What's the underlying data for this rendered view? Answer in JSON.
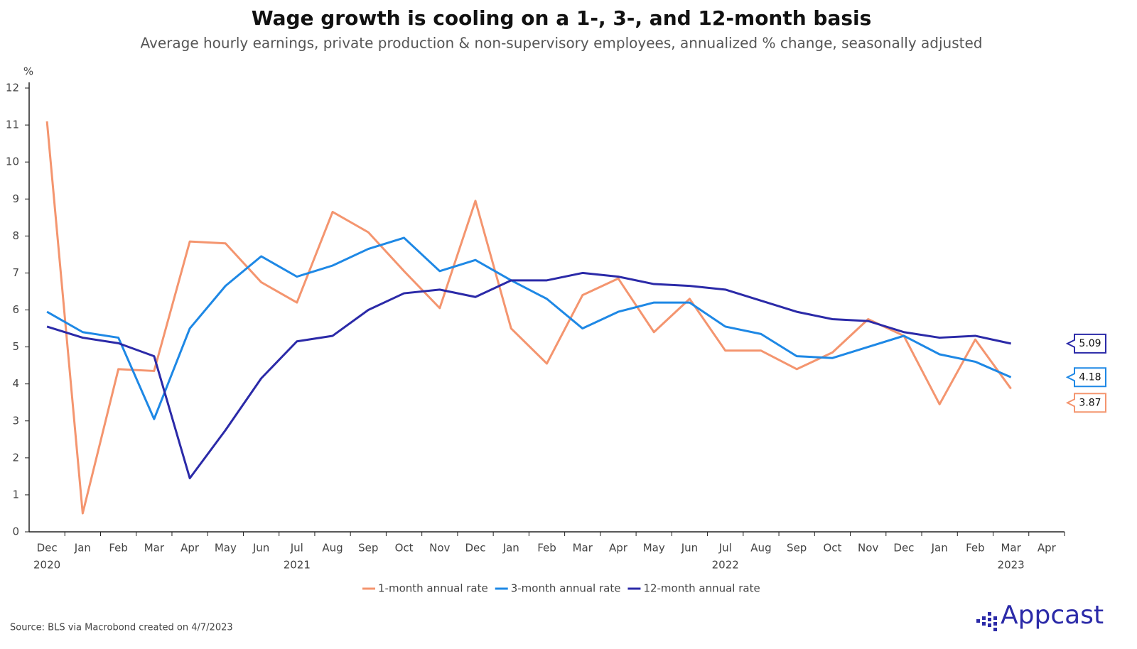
{
  "chart_data": {
    "type": "line",
    "title": "Wage growth is cooling on a 1-, 3-, and 12-month basis",
    "subtitle": "Average hourly earnings, private production & non-supervisory employees, annualized % change, seasonally adjusted",
    "y_label": "%",
    "categories": [
      "Dec",
      "Jan",
      "Feb",
      "Mar",
      "Apr",
      "May",
      "Jun",
      "Jul",
      "Aug",
      "Sep",
      "Oct",
      "Nov",
      "Dec",
      "Jan",
      "Feb",
      "Mar",
      "Apr",
      "May",
      "Jun",
      "Jul",
      "Aug",
      "Sep",
      "Oct",
      "Nov",
      "Dec",
      "Jan",
      "Feb",
      "Mar",
      "Apr"
    ],
    "years": [
      "2020",
      null,
      null,
      null,
      null,
      null,
      null,
      "2021",
      null,
      null,
      null,
      null,
      null,
      null,
      null,
      null,
      null,
      null,
      null,
      "2022",
      null,
      null,
      null,
      null,
      null,
      null,
      null,
      "2023",
      null
    ],
    "series": [
      {
        "name": "1-month annual rate",
        "color": "#f4956f",
        "values": [
          11.1,
          0.5,
          4.4,
          4.35,
          7.85,
          7.8,
          6.75,
          6.2,
          8.65,
          8.1,
          7.05,
          6.05,
          8.95,
          5.5,
          4.55,
          6.4,
          6.85,
          5.4,
          6.3,
          4.9,
          4.9,
          4.4,
          4.85,
          5.75,
          5.3,
          3.45,
          5.2,
          3.87,
          null
        ]
      },
      {
        "name": "3-month annual rate",
        "color": "#1e88e5",
        "values": [
          5.95,
          5.4,
          5.25,
          3.05,
          5.5,
          6.65,
          7.45,
          6.9,
          7.2,
          7.65,
          7.95,
          7.05,
          7.35,
          6.8,
          6.3,
          5.5,
          5.95,
          6.2,
          6.2,
          5.55,
          5.35,
          4.75,
          4.7,
          5.0,
          5.3,
          4.8,
          4.6,
          4.18,
          null
        ]
      },
      {
        "name": "12-month annual rate",
        "color": "#2b2aa8",
        "values": [
          5.55,
          5.25,
          5.1,
          4.75,
          1.45,
          2.75,
          4.15,
          5.15,
          5.3,
          6.0,
          6.45,
          6.55,
          6.35,
          6.8,
          6.8,
          7.0,
          6.9,
          6.7,
          6.65,
          6.55,
          6.25,
          5.95,
          5.75,
          5.7,
          5.4,
          5.25,
          5.3,
          5.09,
          null
        ]
      }
    ],
    "ylim": [
      0,
      12
    ],
    "yticks": [
      0,
      1,
      2,
      3,
      4,
      5,
      6,
      7,
      8,
      9,
      10,
      11,
      12
    ],
    "legend": "bottom",
    "source": "Source: BLS via Macrobond created on 4/7/2023",
    "logo": "Appcast"
  }
}
